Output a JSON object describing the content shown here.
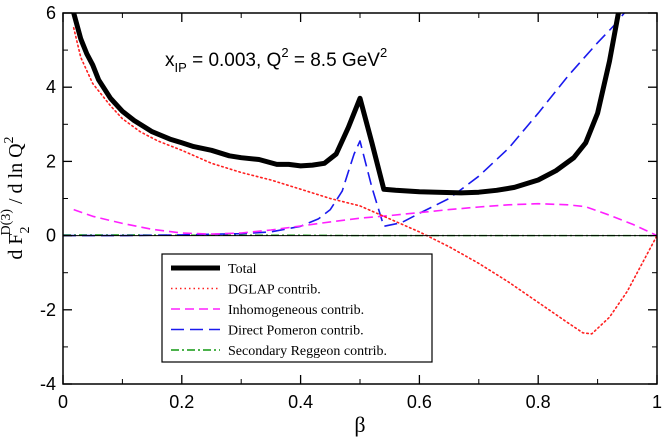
{
  "chart_data": {
    "type": "line",
    "title": "",
    "annotation": {
      "x_base": "x",
      "x_sub": "IP",
      "x_value": " = 0.003, Q",
      "q_sup": "2",
      "q_value": " = 8.5 GeV",
      "gev_sup": "2"
    },
    "xlabel": "β",
    "ylabel": {
      "part1": "d F",
      "sub": "2",
      "sup": "D(3)",
      "part2": " / d ln Q",
      "sup2": "2"
    },
    "xlim": [
      0,
      1
    ],
    "ylim": [
      -4,
      6
    ],
    "x_ticks": [
      0,
      0.2,
      0.4,
      0.6,
      0.8,
      1
    ],
    "x_tick_labels": [
      "0",
      "0.2",
      "0.4",
      "0.6",
      "0.8",
      "1"
    ],
    "y_ticks": [
      -4,
      -2,
      0,
      2,
      4,
      6
    ],
    "y_tick_labels": [
      "-4",
      "-2",
      "0",
      "2",
      "4",
      "6"
    ],
    "grid": false,
    "legend_position": "bottom-center",
    "series": [
      {
        "name": "Total",
        "color": "#000000",
        "dash": "solid",
        "width": 5,
        "x": [
          0.018,
          0.03,
          0.04,
          0.05,
          0.06,
          0.08,
          0.1,
          0.12,
          0.15,
          0.18,
          0.2,
          0.22,
          0.25,
          0.28,
          0.3,
          0.33,
          0.36,
          0.38,
          0.4,
          0.42,
          0.44,
          0.46,
          0.48,
          0.5,
          0.52,
          0.54,
          0.56,
          0.6,
          0.63,
          0.67,
          0.7,
          0.73,
          0.76,
          0.8,
          0.83,
          0.86,
          0.88,
          0.9,
          0.92,
          0.935
        ],
        "y": [
          6.0,
          5.3,
          4.9,
          4.6,
          4.2,
          3.7,
          3.35,
          3.1,
          2.8,
          2.6,
          2.5,
          2.4,
          2.3,
          2.15,
          2.1,
          2.05,
          1.92,
          1.92,
          1.88,
          1.9,
          1.95,
          2.2,
          2.9,
          3.7,
          2.5,
          1.25,
          1.22,
          1.18,
          1.17,
          1.15,
          1.17,
          1.22,
          1.3,
          1.5,
          1.75,
          2.1,
          2.5,
          3.3,
          4.7,
          6.0
        ]
      },
      {
        "name": "DGLAP contrib.",
        "color": "#ff2020",
        "dash": "dotted",
        "width": 1.6,
        "x": [
          0.018,
          0.03,
          0.05,
          0.08,
          0.1,
          0.13,
          0.16,
          0.2,
          0.25,
          0.3,
          0.35,
          0.4,
          0.45,
          0.5,
          0.55,
          0.6,
          0.65,
          0.7,
          0.75,
          0.8,
          0.85,
          0.875,
          0.89,
          0.92,
          0.95,
          0.98,
          1.0
        ],
        "y": [
          5.6,
          4.8,
          4.1,
          3.5,
          3.15,
          2.8,
          2.55,
          2.3,
          1.95,
          1.7,
          1.5,
          1.25,
          1.0,
          0.8,
          0.45,
          0.1,
          -0.3,
          -0.75,
          -1.25,
          -1.8,
          -2.35,
          -2.62,
          -2.65,
          -2.2,
          -1.5,
          -0.6,
          0.0
        ]
      },
      {
        "name": "Inhomogeneous contrib.",
        "color": "#ff20ff",
        "dash": "dashed",
        "width": 1.6,
        "x": [
          0.018,
          0.05,
          0.1,
          0.15,
          0.2,
          0.25,
          0.3,
          0.35,
          0.4,
          0.45,
          0.5,
          0.55,
          0.6,
          0.65,
          0.7,
          0.75,
          0.8,
          0.85,
          0.88,
          0.92,
          0.96,
          1.0
        ],
        "y": [
          0.7,
          0.52,
          0.33,
          0.17,
          0.07,
          0.04,
          0.07,
          0.15,
          0.26,
          0.37,
          0.47,
          0.54,
          0.62,
          0.7,
          0.77,
          0.83,
          0.86,
          0.83,
          0.78,
          0.55,
          0.3,
          0.0
        ]
      },
      {
        "name": "Direct Pomeron contrib.",
        "color": "#1a1aee",
        "dash": "longdash",
        "width": 1.6,
        "x": [
          0.0,
          0.1,
          0.2,
          0.3,
          0.35,
          0.4,
          0.43,
          0.45,
          0.47,
          0.48,
          0.49,
          0.5,
          0.52,
          0.54,
          0.57,
          0.6,
          0.65,
          0.7,
          0.75,
          0.8,
          0.85,
          0.9,
          0.93,
          0.945
        ],
        "y": [
          0.0,
          0.0,
          0.02,
          0.05,
          0.1,
          0.25,
          0.45,
          0.7,
          1.2,
          1.7,
          2.2,
          2.55,
          1.3,
          0.25,
          0.35,
          0.6,
          1.0,
          1.6,
          2.35,
          3.3,
          4.3,
          5.2,
          5.7,
          6.0
        ]
      },
      {
        "name": "Secondary Reggeon contrib.",
        "color": "#119911",
        "dash": "dashdot",
        "width": 1.4,
        "x": [
          0.0,
          0.1,
          0.2,
          0.3,
          0.4,
          0.5,
          0.6,
          0.7,
          0.8,
          0.9,
          1.0
        ],
        "y": [
          0.02,
          0.02,
          0.01,
          0.01,
          0.01,
          0.0,
          0.0,
          0.0,
          0.0,
          0.0,
          0.0
        ]
      }
    ]
  }
}
